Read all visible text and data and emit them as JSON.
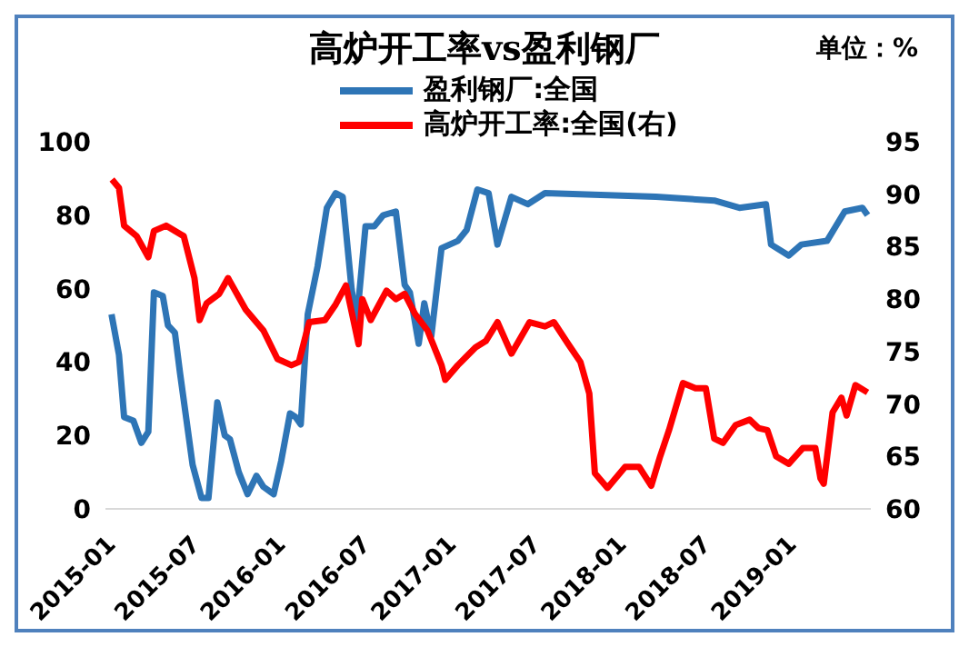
{
  "chart_data": {
    "type": "line",
    "title": "高炉开工率vs盈利钢厂",
    "annotations": [
      "单位：%"
    ],
    "legend": "top",
    "grid": false,
    "marker": "none",
    "line_style": "solid",
    "xlim": [
      "2015-01-01",
      "2019-07-01"
    ],
    "xticks": [
      {
        "value": "2015-01-01",
        "label": "2015-01"
      },
      {
        "value": "2015-07-01",
        "label": "2015-07"
      },
      {
        "value": "2016-01-01",
        "label": "2016-01"
      },
      {
        "value": "2016-07-01",
        "label": "2016-07"
      },
      {
        "value": "2017-01-01",
        "label": "2017-01"
      },
      {
        "value": "2017-07-01",
        "label": "2017-07"
      },
      {
        "value": "2018-01-01",
        "label": "2018-01"
      },
      {
        "value": "2018-07-01",
        "label": "2018-07"
      },
      {
        "value": "2019-01-01",
        "label": "2019-01"
      }
    ],
    "ylim": [
      0,
      100
    ],
    "yticks": [
      0,
      20,
      40,
      60,
      80,
      100
    ],
    "y2lim": [
      60,
      95
    ],
    "y2ticks": [
      60,
      65,
      70,
      75,
      80,
      85,
      90,
      95
    ],
    "series": [
      {
        "name": "盈利钢厂:全国",
        "color": "#2e75b6",
        "x": [
          "2015-01-14",
          "2015-01-30",
          "2015-02-10",
          "2015-03-02",
          "2015-03-19",
          "2015-04-03",
          "2015-04-15",
          "2015-05-04",
          "2015-05-15",
          "2015-05-30",
          "2015-06-10",
          "2015-07-07",
          "2015-07-26",
          "2015-08-10",
          "2015-08-29",
          "2015-09-14",
          "2015-09-25",
          "2015-10-14",
          "2015-11-02",
          "2015-11-21",
          "2015-12-06",
          "2015-12-28",
          "2016-01-13",
          "2016-02-01",
          "2016-02-13",
          "2016-02-24",
          "2016-03-10",
          "2016-03-31",
          "2016-04-20",
          "2016-05-09",
          "2016-05-24",
          "2016-06-12",
          "2016-06-23",
          "2016-07-12",
          "2016-07-31",
          "2016-08-19",
          "2016-09-15",
          "2016-10-04",
          "2016-10-15",
          "2016-11-03",
          "2016-11-15",
          "2016-11-30",
          "2016-12-22",
          "2017-01-26",
          "2017-02-14",
          "2017-03-09",
          "2017-04-02",
          "2017-04-21",
          "2017-05-21",
          "2017-06-25",
          "2017-08-01",
          "2018-03-27",
          "2018-07-30",
          "2018-09-22",
          "2018-11-18",
          "2018-11-29",
          "2019-01-06",
          "2019-02-02",
          "2019-03-29",
          "2019-05-06",
          "2019-06-13",
          "2019-06-24"
        ],
        "values": [
          53,
          42,
          25,
          24,
          18,
          21,
          59,
          58,
          50,
          48,
          37,
          12,
          3,
          3,
          29,
          20,
          19,
          10,
          4,
          9,
          6,
          4,
          13,
          26,
          25,
          23,
          53,
          66,
          82,
          86,
          85,
          60,
          51,
          77,
          77,
          80,
          81,
          61,
          59,
          45,
          56,
          47,
          71,
          73,
          76,
          87,
          86,
          72,
          85,
          83,
          86,
          85,
          84,
          82,
          83,
          72,
          69,
          72,
          73,
          81,
          82,
          80
        ]
      },
      {
        "name": "高炉开工率:全国(右)",
        "color": "#ff0000",
        "axis": "y2",
        "x": [
          "2015-01-15",
          "2015-01-30",
          "2015-02-10",
          "2015-03-09",
          "2015-04-03",
          "2015-04-15",
          "2015-05-11",
          "2015-06-18",
          "2015-07-11",
          "2015-07-22",
          "2015-08-06",
          "2015-09-02",
          "2015-09-21",
          "2015-10-29",
          "2015-12-06",
          "2016-01-05",
          "2016-02-04",
          "2016-02-20",
          "2016-03-13",
          "2016-04-16",
          "2016-05-09",
          "2016-05-31",
          "2016-06-16",
          "2016-06-27",
          "2016-07-05",
          "2016-07-23",
          "2016-08-26",
          "2016-09-15",
          "2016-10-04",
          "2016-10-26",
          "2016-11-22",
          "2016-12-22",
          "2016-12-30",
          "2017-01-26",
          "2017-03-05",
          "2017-03-27",
          "2017-04-21",
          "2017-05-21",
          "2017-06-29",
          "2017-08-01",
          "2017-08-20",
          "2017-09-20",
          "2017-10-16",
          "2017-11-04",
          "2017-11-16",
          "2017-12-13",
          "2018-01-20",
          "2018-02-19",
          "2018-03-17",
          "2018-04-05",
          "2018-04-24",
          "2018-05-24",
          "2018-06-20",
          "2018-07-12",
          "2018-07-30",
          "2018-08-18",
          "2018-09-14",
          "2018-10-14",
          "2018-11-02",
          "2018-11-21",
          "2018-12-10",
          "2019-01-06",
          "2019-02-05",
          "2019-03-04",
          "2019-03-15",
          "2019-03-22",
          "2019-04-10",
          "2019-04-29",
          "2019-05-10",
          "2019-05-29",
          "2019-06-24"
        ],
        "values": [
          91.4,
          90.6,
          87,
          86,
          84,
          86.5,
          87,
          86,
          82,
          78,
          79.6,
          80.5,
          82,
          79,
          77,
          74.3,
          73.7,
          74,
          77.8,
          78,
          79.5,
          81.3,
          78,
          75.7,
          80,
          78,
          80.8,
          80,
          80.5,
          78.6,
          77,
          73.7,
          72.3,
          73.7,
          75.4,
          76,
          77.8,
          74.8,
          77.8,
          77.4,
          77.8,
          75.7,
          74,
          71,
          63.4,
          62,
          64,
          64,
          62.2,
          65,
          67.5,
          72,
          71.5,
          71.5,
          66.7,
          66.3,
          68,
          68.5,
          67.7,
          67.5,
          65,
          64.3,
          65.8,
          65.8,
          62.9,
          62.4,
          69.2,
          70.6,
          68.9,
          71.8,
          71.1
        ]
      }
    ]
  }
}
